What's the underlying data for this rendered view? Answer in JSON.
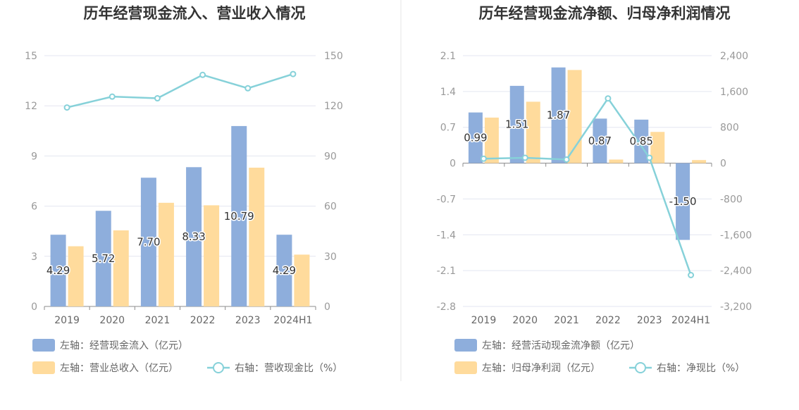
{
  "colors": {
    "bar_primary": "#8eaedc",
    "bar_secondary": "#ffdb9c",
    "line": "#86d1d9",
    "divider": "#e6e6e6"
  },
  "chart_data": [
    {
      "type": "bar",
      "title": "历年经营现金流入、营业收入情况",
      "categories": [
        "2019",
        "2020",
        "2021",
        "2022",
        "2023",
        "2024H1"
      ],
      "left_axis": {
        "ylim": [
          0,
          15
        ],
        "ticks": [
          "0",
          "3",
          "6",
          "9",
          "12",
          "15"
        ]
      },
      "right_axis": {
        "ylim": [
          0,
          150
        ],
        "ticks": [
          "0",
          "30",
          "60",
          "90",
          "120",
          "150"
        ]
      },
      "grid": true,
      "legend_position": "bottom-left",
      "series": [
        {
          "name": "左轴：经营现金流入（亿元）",
          "type": "bar",
          "axis": "left",
          "values": [
            4.29,
            5.72,
            7.7,
            8.33,
            10.79,
            4.29
          ],
          "labels": [
            "4.29",
            "5.72",
            "7.70",
            "8.33",
            "10.79",
            "4.29"
          ]
        },
        {
          "name": "左轴：营业总收入（亿元）",
          "type": "bar",
          "axis": "left",
          "values": [
            3.6,
            4.55,
            6.2,
            6.05,
            8.3,
            3.1
          ]
        },
        {
          "name": "右轴：营收现金比（%）",
          "type": "line",
          "axis": "right",
          "values": [
            119,
            125.5,
            124.5,
            138.5,
            130.5,
            139
          ]
        }
      ]
    },
    {
      "type": "bar",
      "title": "历年经营现金流净额、归母净利润情况",
      "categories": [
        "2019",
        "2020",
        "2021",
        "2022",
        "2023",
        "2024H1"
      ],
      "left_axis": {
        "ylim": [
          -2.8,
          2.1
        ],
        "ticks": [
          "-2.8",
          "-2.1",
          "-1.4",
          "-0.7",
          "0",
          "0.7",
          "1.4",
          "2.1"
        ]
      },
      "right_axis": {
        "ylim": [
          -3200,
          2400
        ],
        "ticks": [
          "-3,200",
          "-2,400",
          "-1,600",
          "-800",
          "0",
          "800",
          "1,600",
          "2,400"
        ]
      },
      "grid": true,
      "legend_position": "bottom-left",
      "series": [
        {
          "name": "左轴：经营活动现金流净额（亿元）",
          "type": "bar",
          "axis": "left",
          "values": [
            0.99,
            1.51,
            1.87,
            0.87,
            0.85,
            -1.5
          ],
          "labels": [
            "0.99",
            "1.51",
            "1.87",
            "0.87",
            "0.85",
            "-1.50"
          ]
        },
        {
          "name": "左轴：归母净利润（亿元）",
          "type": "bar",
          "axis": "left",
          "values": [
            0.89,
            1.2,
            1.82,
            0.07,
            0.61,
            0.06
          ]
        },
        {
          "name": "右轴：净现比（%）",
          "type": "line",
          "axis": "right",
          "values": [
            100,
            120,
            80,
            1445,
            120,
            -2500
          ]
        }
      ]
    }
  ]
}
